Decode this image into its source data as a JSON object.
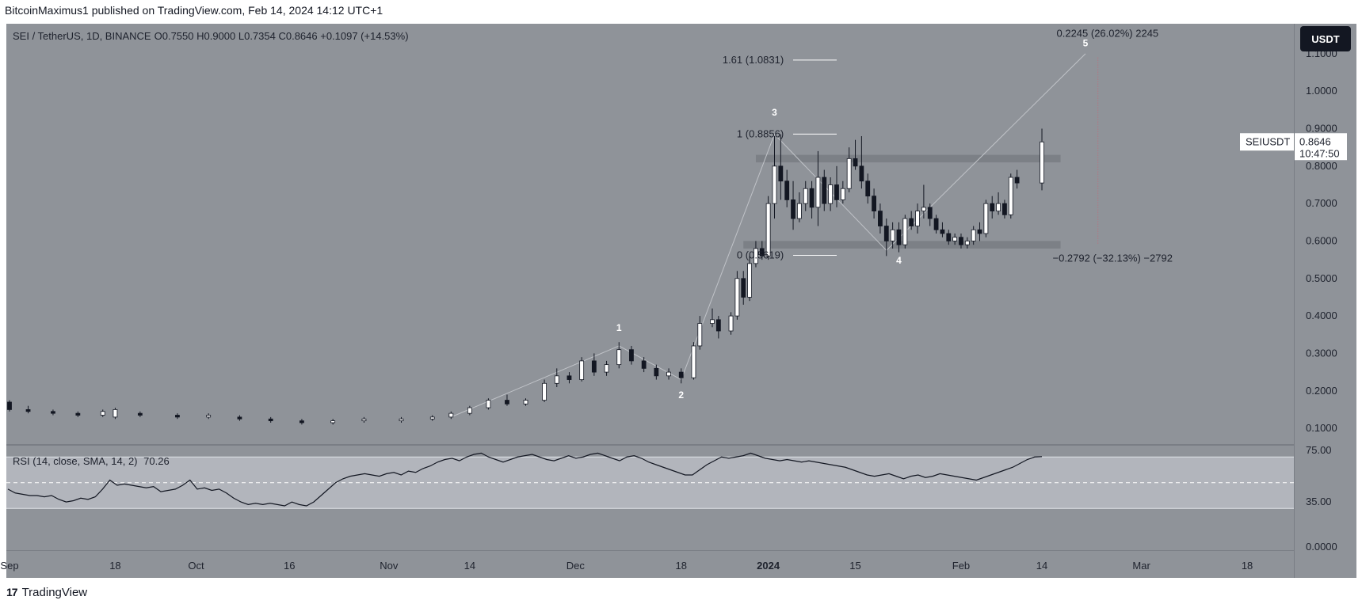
{
  "publisher": "BitcoinMaximus1 published on TradingView.com, Feb 14, 2024 14:12 UTC+1",
  "footer_brand": "TradingView",
  "unit_button": "USDT",
  "legend": {
    "symbol": "SEI / TetherUS, 1D, BINANCE",
    "ohlc": "O0.7550 H0.9000 L0.7354 C0.8646 +0.1097 (+14.53%)"
  },
  "last_price": {
    "symbol": "SEIUSDT",
    "value": "0.8646",
    "countdown": "10:47:50"
  },
  "rsi": {
    "label": "RSI (14, close, SMA, 14, 2)",
    "value": "70.26",
    "ticks": [
      "75.00",
      "35.00",
      "0.0000"
    ],
    "upper_band": 70,
    "lower_band": 30,
    "mid_band": 50,
    "values": [
      45,
      42,
      41,
      40,
      40,
      39,
      40,
      37,
      35,
      36,
      38,
      37,
      39,
      45,
      52,
      48,
      49,
      48,
      47,
      46,
      47,
      43,
      44,
      45,
      48,
      52,
      45,
      46,
      44,
      45,
      42,
      38,
      35,
      33,
      34,
      33,
      34,
      33,
      32,
      35,
      33,
      32,
      35,
      40,
      45,
      50,
      53,
      55,
      56,
      57,
      56,
      55,
      57,
      58,
      56,
      59,
      58,
      61,
      63,
      66,
      68,
      69,
      67,
      70,
      72,
      73,
      70,
      68,
      66,
      68,
      70,
      71,
      72,
      70,
      68,
      67,
      69,
      71,
      69,
      70,
      72,
      73,
      71,
      69,
      67,
      70,
      71,
      69,
      66,
      64,
      62,
      60,
      58,
      56,
      56,
      60,
      64,
      67,
      70,
      69,
      70,
      71,
      73,
      71,
      69,
      68,
      67,
      68,
      67,
      66,
      67,
      66,
      65,
      64,
      63,
      62,
      60,
      58,
      56,
      55,
      56,
      57,
      55,
      53,
      55,
      56,
      54,
      55,
      57,
      56,
      55,
      54,
      53,
      52,
      54,
      56,
      58,
      60,
      62,
      65,
      68,
      70,
      70.26
    ]
  },
  "price_ticks": [
    "1.1000",
    "1.0000",
    "0.9000",
    "0.8000",
    "0.7000",
    "0.6000",
    "0.5000",
    "0.4000",
    "0.3000",
    "0.2000",
    "0.1000"
  ],
  "time_ticks": [
    {
      "label": "Sep",
      "bold": false
    },
    {
      "label": "18",
      "bold": false
    },
    {
      "label": "Oct",
      "bold": false
    },
    {
      "label": "16",
      "bold": false
    },
    {
      "label": "Nov",
      "bold": false
    },
    {
      "label": "14",
      "bold": false
    },
    {
      "label": "Dec",
      "bold": false
    },
    {
      "label": "18",
      "bold": false
    },
    {
      "label": "2024",
      "bold": true
    },
    {
      "label": "15",
      "bold": false
    },
    {
      "label": "Feb",
      "bold": false
    },
    {
      "label": "14",
      "bold": false
    },
    {
      "label": "Mar",
      "bold": false
    },
    {
      "label": "18",
      "bold": false
    }
  ],
  "annotations": {
    "fib_161": "1.61 (1.0831)",
    "fib_1": "1 (0.8856)",
    "fib_0": "0 (0.5619)",
    "measure_up": "0.2245 (26.02%) 2245",
    "measure_down": "−0.2792 (−32.13%) −2792",
    "waves": [
      "1",
      "2",
      "3",
      "4",
      "5"
    ]
  },
  "colors": {
    "background": "#8f9399",
    "candle_up": "#ffffff",
    "candle_down": "#131722",
    "rsi_band": "#b2b5bc",
    "range_box": "#6f7379"
  },
  "chart_data": {
    "type": "candlestick",
    "title": "SEI / TetherUS, 1D, BINANCE",
    "ylabel": "USDT",
    "ylim": [
      0.06,
      1.18
    ],
    "x_range": [
      "2023-09-01",
      "2024-03-25"
    ],
    "support_range": [
      0.58,
      0.6
    ],
    "resistance_range": [
      0.81,
      0.83
    ],
    "candles": [
      {
        "date": "2023-09-01",
        "o": 0.17,
        "h": 0.175,
        "l": 0.145,
        "c": 0.15
      },
      {
        "date": "2023-09-04",
        "o": 0.15,
        "h": 0.16,
        "l": 0.14,
        "c": 0.145
      },
      {
        "date": "2023-09-08",
        "o": 0.145,
        "h": 0.15,
        "l": 0.135,
        "c": 0.14
      },
      {
        "date": "2023-09-12",
        "o": 0.14,
        "h": 0.145,
        "l": 0.13,
        "c": 0.135
      },
      {
        "date": "2023-09-16",
        "o": 0.135,
        "h": 0.15,
        "l": 0.13,
        "c": 0.145
      },
      {
        "date": "2023-09-18",
        "o": 0.13,
        "h": 0.155,
        "l": 0.125,
        "c": 0.15
      },
      {
        "date": "2023-09-22",
        "o": 0.14,
        "h": 0.145,
        "l": 0.13,
        "c": 0.135
      },
      {
        "date": "2023-09-28",
        "o": 0.135,
        "h": 0.14,
        "l": 0.125,
        "c": 0.13
      },
      {
        "date": "2023-10-03",
        "o": 0.13,
        "h": 0.14,
        "l": 0.125,
        "c": 0.135
      },
      {
        "date": "2023-10-08",
        "o": 0.13,
        "h": 0.135,
        "l": 0.12,
        "c": 0.125
      },
      {
        "date": "2023-10-13",
        "o": 0.125,
        "h": 0.13,
        "l": 0.115,
        "c": 0.12
      },
      {
        "date": "2023-10-18",
        "o": 0.12,
        "h": 0.125,
        "l": 0.11,
        "c": 0.115
      },
      {
        "date": "2023-10-23",
        "o": 0.115,
        "h": 0.125,
        "l": 0.11,
        "c": 0.12
      },
      {
        "date": "2023-10-28",
        "o": 0.12,
        "h": 0.13,
        "l": 0.115,
        "c": 0.125
      },
      {
        "date": "2023-11-03",
        "o": 0.12,
        "h": 0.13,
        "l": 0.115,
        "c": 0.125
      },
      {
        "date": "2023-11-08",
        "o": 0.125,
        "h": 0.135,
        "l": 0.12,
        "c": 0.13
      },
      {
        "date": "2023-11-11",
        "o": 0.13,
        "h": 0.145,
        "l": 0.125,
        "c": 0.14
      },
      {
        "date": "2023-11-14",
        "o": 0.14,
        "h": 0.16,
        "l": 0.135,
        "c": 0.155
      },
      {
        "date": "2023-11-17",
        "o": 0.155,
        "h": 0.18,
        "l": 0.15,
        "c": 0.175
      },
      {
        "date": "2023-11-20",
        "o": 0.175,
        "h": 0.19,
        "l": 0.16,
        "c": 0.165
      },
      {
        "date": "2023-11-23",
        "o": 0.165,
        "h": 0.18,
        "l": 0.16,
        "c": 0.175
      },
      {
        "date": "2023-11-26",
        "o": 0.175,
        "h": 0.23,
        "l": 0.17,
        "c": 0.22
      },
      {
        "date": "2023-11-28",
        "o": 0.22,
        "h": 0.26,
        "l": 0.21,
        "c": 0.24
      },
      {
        "date": "2023-11-30",
        "o": 0.24,
        "h": 0.25,
        "l": 0.22,
        "c": 0.23
      },
      {
        "date": "2023-12-02",
        "o": 0.23,
        "h": 0.29,
        "l": 0.225,
        "c": 0.28
      },
      {
        "date": "2023-12-04",
        "o": 0.28,
        "h": 0.3,
        "l": 0.24,
        "c": 0.25
      },
      {
        "date": "2023-12-06",
        "o": 0.25,
        "h": 0.28,
        "l": 0.24,
        "c": 0.27
      },
      {
        "date": "2023-12-08",
        "o": 0.27,
        "h": 0.33,
        "l": 0.26,
        "c": 0.31
      },
      {
        "date": "2023-12-10",
        "o": 0.31,
        "h": 0.32,
        "l": 0.27,
        "c": 0.28
      },
      {
        "date": "2023-12-12",
        "o": 0.28,
        "h": 0.29,
        "l": 0.25,
        "c": 0.26
      },
      {
        "date": "2023-12-14",
        "o": 0.26,
        "h": 0.27,
        "l": 0.23,
        "c": 0.24
      },
      {
        "date": "2023-12-16",
        "o": 0.24,
        "h": 0.26,
        "l": 0.23,
        "c": 0.25
      },
      {
        "date": "2023-12-18",
        "o": 0.25,
        "h": 0.26,
        "l": 0.22,
        "c": 0.235
      },
      {
        "date": "2023-12-20",
        "o": 0.235,
        "h": 0.33,
        "l": 0.23,
        "c": 0.32
      },
      {
        "date": "2023-12-21",
        "o": 0.32,
        "h": 0.4,
        "l": 0.31,
        "c": 0.38
      },
      {
        "date": "2023-12-23",
        "o": 0.38,
        "h": 0.42,
        "l": 0.37,
        "c": 0.39
      },
      {
        "date": "2023-12-24",
        "o": 0.39,
        "h": 0.4,
        "l": 0.34,
        "c": 0.36
      },
      {
        "date": "2023-12-26",
        "o": 0.36,
        "h": 0.41,
        "l": 0.35,
        "c": 0.4
      },
      {
        "date": "2023-12-27",
        "o": 0.4,
        "h": 0.52,
        "l": 0.39,
        "c": 0.5
      },
      {
        "date": "2023-12-28",
        "o": 0.5,
        "h": 0.52,
        "l": 0.43,
        "c": 0.45
      },
      {
        "date": "2023-12-29",
        "o": 0.45,
        "h": 0.56,
        "l": 0.44,
        "c": 0.54
      },
      {
        "date": "2023-12-30",
        "o": 0.54,
        "h": 0.6,
        "l": 0.53,
        "c": 0.58
      },
      {
        "date": "2023-12-31",
        "o": 0.58,
        "h": 0.6,
        "l": 0.55,
        "c": 0.56
      },
      {
        "date": "2024-01-01",
        "o": 0.56,
        "h": 0.72,
        "l": 0.55,
        "c": 0.7
      },
      {
        "date": "2024-01-02",
        "o": 0.7,
        "h": 0.88,
        "l": 0.66,
        "c": 0.8
      },
      {
        "date": "2024-01-03",
        "o": 0.8,
        "h": 0.885,
        "l": 0.71,
        "c": 0.76
      },
      {
        "date": "2024-01-04",
        "o": 0.76,
        "h": 0.79,
        "l": 0.69,
        "c": 0.71
      },
      {
        "date": "2024-01-05",
        "o": 0.71,
        "h": 0.76,
        "l": 0.63,
        "c": 0.66
      },
      {
        "date": "2024-01-06",
        "o": 0.66,
        "h": 0.73,
        "l": 0.65,
        "c": 0.7
      },
      {
        "date": "2024-01-07",
        "o": 0.7,
        "h": 0.76,
        "l": 0.68,
        "c": 0.74
      },
      {
        "date": "2024-01-08",
        "o": 0.74,
        "h": 0.76,
        "l": 0.66,
        "c": 0.69
      },
      {
        "date": "2024-01-09",
        "o": 0.69,
        "h": 0.84,
        "l": 0.64,
        "c": 0.77
      },
      {
        "date": "2024-01-10",
        "o": 0.77,
        "h": 0.79,
        "l": 0.68,
        "c": 0.7
      },
      {
        "date": "2024-01-11",
        "o": 0.7,
        "h": 0.77,
        "l": 0.68,
        "c": 0.75
      },
      {
        "date": "2024-01-12",
        "o": 0.75,
        "h": 0.8,
        "l": 0.69,
        "c": 0.71
      },
      {
        "date": "2024-01-13",
        "o": 0.71,
        "h": 0.76,
        "l": 0.7,
        "c": 0.74
      },
      {
        "date": "2024-01-14",
        "o": 0.74,
        "h": 0.85,
        "l": 0.73,
        "c": 0.82
      },
      {
        "date": "2024-01-15",
        "o": 0.82,
        "h": 0.87,
        "l": 0.79,
        "c": 0.8
      },
      {
        "date": "2024-01-16",
        "o": 0.8,
        "h": 0.88,
        "l": 0.74,
        "c": 0.76
      },
      {
        "date": "2024-01-17",
        "o": 0.76,
        "h": 0.78,
        "l": 0.7,
        "c": 0.72
      },
      {
        "date": "2024-01-18",
        "o": 0.72,
        "h": 0.74,
        "l": 0.66,
        "c": 0.68
      },
      {
        "date": "2024-01-19",
        "o": 0.68,
        "h": 0.7,
        "l": 0.62,
        "c": 0.64
      },
      {
        "date": "2024-01-20",
        "o": 0.64,
        "h": 0.66,
        "l": 0.56,
        "c": 0.6
      },
      {
        "date": "2024-01-21",
        "o": 0.6,
        "h": 0.65,
        "l": 0.58,
        "c": 0.63
      },
      {
        "date": "2024-01-22",
        "o": 0.63,
        "h": 0.65,
        "l": 0.57,
        "c": 0.59
      },
      {
        "date": "2024-01-23",
        "o": 0.59,
        "h": 0.67,
        "l": 0.58,
        "c": 0.66
      },
      {
        "date": "2024-01-24",
        "o": 0.66,
        "h": 0.68,
        "l": 0.63,
        "c": 0.64
      },
      {
        "date": "2024-01-25",
        "o": 0.64,
        "h": 0.7,
        "l": 0.62,
        "c": 0.68
      },
      {
        "date": "2024-01-26",
        "o": 0.68,
        "h": 0.75,
        "l": 0.66,
        "c": 0.69
      },
      {
        "date": "2024-01-27",
        "o": 0.69,
        "h": 0.7,
        "l": 0.64,
        "c": 0.66
      },
      {
        "date": "2024-01-28",
        "o": 0.66,
        "h": 0.67,
        "l": 0.62,
        "c": 0.63
      },
      {
        "date": "2024-01-29",
        "o": 0.63,
        "h": 0.65,
        "l": 0.61,
        "c": 0.62
      },
      {
        "date": "2024-01-30",
        "o": 0.62,
        "h": 0.63,
        "l": 0.59,
        "c": 0.6
      },
      {
        "date": "2024-01-31",
        "o": 0.6,
        "h": 0.62,
        "l": 0.59,
        "c": 0.61
      },
      {
        "date": "2024-02-01",
        "o": 0.61,
        "h": 0.62,
        "l": 0.58,
        "c": 0.59
      },
      {
        "date": "2024-02-02",
        "o": 0.59,
        "h": 0.61,
        "l": 0.58,
        "c": 0.6
      },
      {
        "date": "2024-02-03",
        "o": 0.6,
        "h": 0.64,
        "l": 0.59,
        "c": 0.63
      },
      {
        "date": "2024-02-04",
        "o": 0.63,
        "h": 0.65,
        "l": 0.6,
        "c": 0.62
      },
      {
        "date": "2024-02-05",
        "o": 0.62,
        "h": 0.71,
        "l": 0.61,
        "c": 0.7
      },
      {
        "date": "2024-02-06",
        "o": 0.7,
        "h": 0.72,
        "l": 0.66,
        "c": 0.68
      },
      {
        "date": "2024-02-07",
        "o": 0.68,
        "h": 0.73,
        "l": 0.67,
        "c": 0.7
      },
      {
        "date": "2024-02-08",
        "o": 0.7,
        "h": 0.71,
        "l": 0.66,
        "c": 0.67
      },
      {
        "date": "2024-02-09",
        "o": 0.67,
        "h": 0.78,
        "l": 0.66,
        "c": 0.77
      },
      {
        "date": "2024-02-10",
        "o": 0.77,
        "h": 0.79,
        "l": 0.74,
        "c": 0.755
      },
      {
        "date": "2024-02-14",
        "o": 0.755,
        "h": 0.9,
        "l": 0.7354,
        "c": 0.8646
      }
    ]
  }
}
